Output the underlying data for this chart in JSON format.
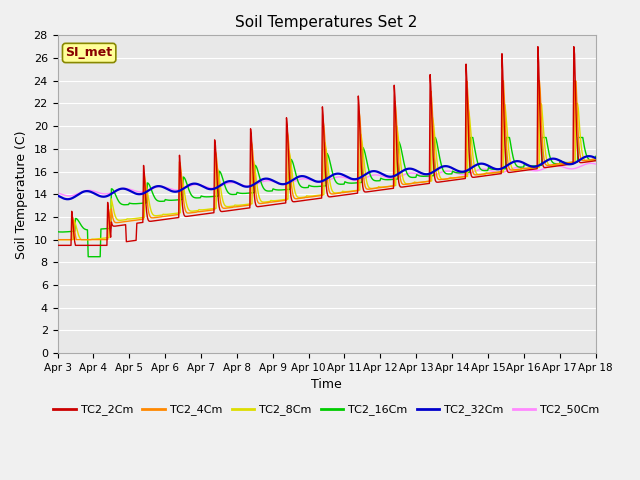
{
  "title": "Soil Temperatures Set 2",
  "xlabel": "Time",
  "ylabel": "Soil Temperature (C)",
  "ylim": [
    0,
    28
  ],
  "yticks": [
    0,
    2,
    4,
    6,
    8,
    10,
    12,
    14,
    16,
    18,
    20,
    22,
    24,
    26,
    28
  ],
  "xtick_labels": [
    "Apr 3",
    "Apr 4",
    "Apr 5",
    "Apr 6",
    "Apr 7",
    "Apr 8",
    "Apr 9",
    "Apr 10",
    "Apr 11",
    "Apr 12",
    "Apr 13",
    "Apr 14",
    "Apr 15",
    "Apr 16",
    "Apr 17",
    "Apr 18"
  ],
  "plot_bg": "#e8e8e8",
  "fig_bg": "#f0f0f0",
  "grid_color": "#ffffff",
  "series_colors": {
    "TC2_2Cm": "#cc0000",
    "TC2_4Cm": "#ff8800",
    "TC2_8Cm": "#dddd00",
    "TC2_16Cm": "#00cc00",
    "TC2_32Cm": "#0000cc",
    "TC2_50Cm": "#ff88ff"
  },
  "annotation_text": "SI_met",
  "annotation_color": "#880000",
  "annotation_bg": "#ffff99",
  "annotation_border": "#888800"
}
